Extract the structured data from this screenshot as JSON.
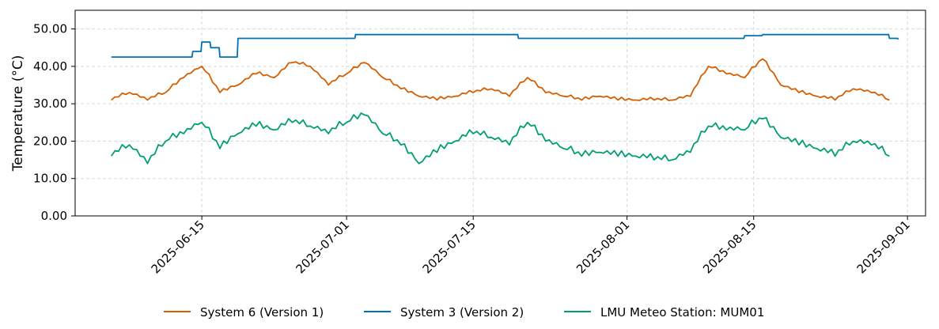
{
  "chart_data": {
    "type": "line",
    "title": "",
    "xlabel": "",
    "ylabel": "Temperature (°C)",
    "ylim": [
      0,
      55
    ],
    "xlim": [
      "2025-06-01",
      "2025-09-03"
    ],
    "yticks": [
      "0.00",
      "10.00",
      "20.00",
      "30.00",
      "40.00",
      "50.00"
    ],
    "xticks": [
      "2025-06-15",
      "2025-07-01",
      "2025-07-15",
      "2025-08-01",
      "2025-08-15",
      "2025-09-01"
    ],
    "grid": true,
    "legend_position": "bottom-center",
    "series": [
      {
        "name": "System 6 (Version 1)",
        "color": "#d55e00",
        "x": [
          "2025-06-05",
          "2025-06-07",
          "2025-06-09",
          "2025-06-11",
          "2025-06-13",
          "2025-06-15",
          "2025-06-17",
          "2025-06-19",
          "2025-06-21",
          "2025-06-23",
          "2025-06-25",
          "2025-06-27",
          "2025-06-29",
          "2025-07-01",
          "2025-07-03",
          "2025-07-05",
          "2025-07-07",
          "2025-07-09",
          "2025-07-11",
          "2025-07-13",
          "2025-07-15",
          "2025-07-17",
          "2025-07-19",
          "2025-07-21",
          "2025-07-23",
          "2025-07-25",
          "2025-07-27",
          "2025-07-29",
          "2025-07-31",
          "2025-08-02",
          "2025-08-04",
          "2025-08-06",
          "2025-08-08",
          "2025-08-10",
          "2025-08-12",
          "2025-08-14",
          "2025-08-16",
          "2025-08-18",
          "2025-08-20",
          "2025-08-22",
          "2025-08-24",
          "2025-08-26",
          "2025-08-28",
          "2025-08-30"
        ],
        "values": [
          31,
          33,
          31,
          33,
          37,
          40,
          33,
          35,
          38,
          37,
          41,
          40,
          35,
          38,
          41,
          37,
          34,
          32,
          31,
          32,
          33,
          34,
          32,
          37,
          33,
          32,
          31,
          32,
          31,
          31,
          31,
          31,
          32,
          40,
          38,
          37,
          42,
          35,
          33,
          32,
          31,
          34,
          33,
          31
        ]
      },
      {
        "name": "System 3 (Version 2)",
        "color": "#0072b2",
        "x": [
          "2025-06-05",
          "2025-06-13",
          "2025-06-14",
          "2025-06-15",
          "2025-06-16",
          "2025-06-17",
          "2025-06-18",
          "2025-06-19",
          "2025-07-01",
          "2025-07-02",
          "2025-07-20",
          "2025-08-01",
          "2025-08-14",
          "2025-08-16",
          "2025-08-30",
          "2025-08-31"
        ],
        "values": [
          42.5,
          42.5,
          44,
          46.5,
          45,
          42.5,
          42.5,
          47.5,
          47.5,
          48.5,
          47.5,
          47.5,
          48.2,
          48.5,
          47.5,
          47.2
        ]
      },
      {
        "name": "LMU Meteo Station: MUM01",
        "color": "#009e73",
        "x": [
          "2025-06-05",
          "2025-06-07",
          "2025-06-09",
          "2025-06-11",
          "2025-06-13",
          "2025-06-15",
          "2025-06-17",
          "2025-06-19",
          "2025-06-21",
          "2025-06-23",
          "2025-06-25",
          "2025-06-27",
          "2025-06-29",
          "2025-07-01",
          "2025-07-03",
          "2025-07-05",
          "2025-07-07",
          "2025-07-09",
          "2025-07-11",
          "2025-07-13",
          "2025-07-15",
          "2025-07-17",
          "2025-07-19",
          "2025-07-21",
          "2025-07-23",
          "2025-07-25",
          "2025-07-27",
          "2025-07-29",
          "2025-07-31",
          "2025-08-02",
          "2025-08-04",
          "2025-08-06",
          "2025-08-08",
          "2025-08-10",
          "2025-08-12",
          "2025-08-14",
          "2025-08-16",
          "2025-08-18",
          "2025-08-20",
          "2025-08-22",
          "2025-08-24",
          "2025-08-26",
          "2025-08-28",
          "2025-08-30"
        ],
        "values": [
          16,
          19,
          14,
          20,
          22,
          25,
          18,
          22,
          24,
          23,
          25,
          24,
          22,
          25,
          27,
          22,
          19,
          14,
          17,
          20,
          22,
          21,
          19,
          25,
          20,
          18,
          16,
          17,
          16,
          16,
          15,
          15,
          17,
          24,
          23,
          23,
          26,
          21,
          19,
          18,
          16,
          20,
          19,
          16
        ]
      }
    ]
  }
}
